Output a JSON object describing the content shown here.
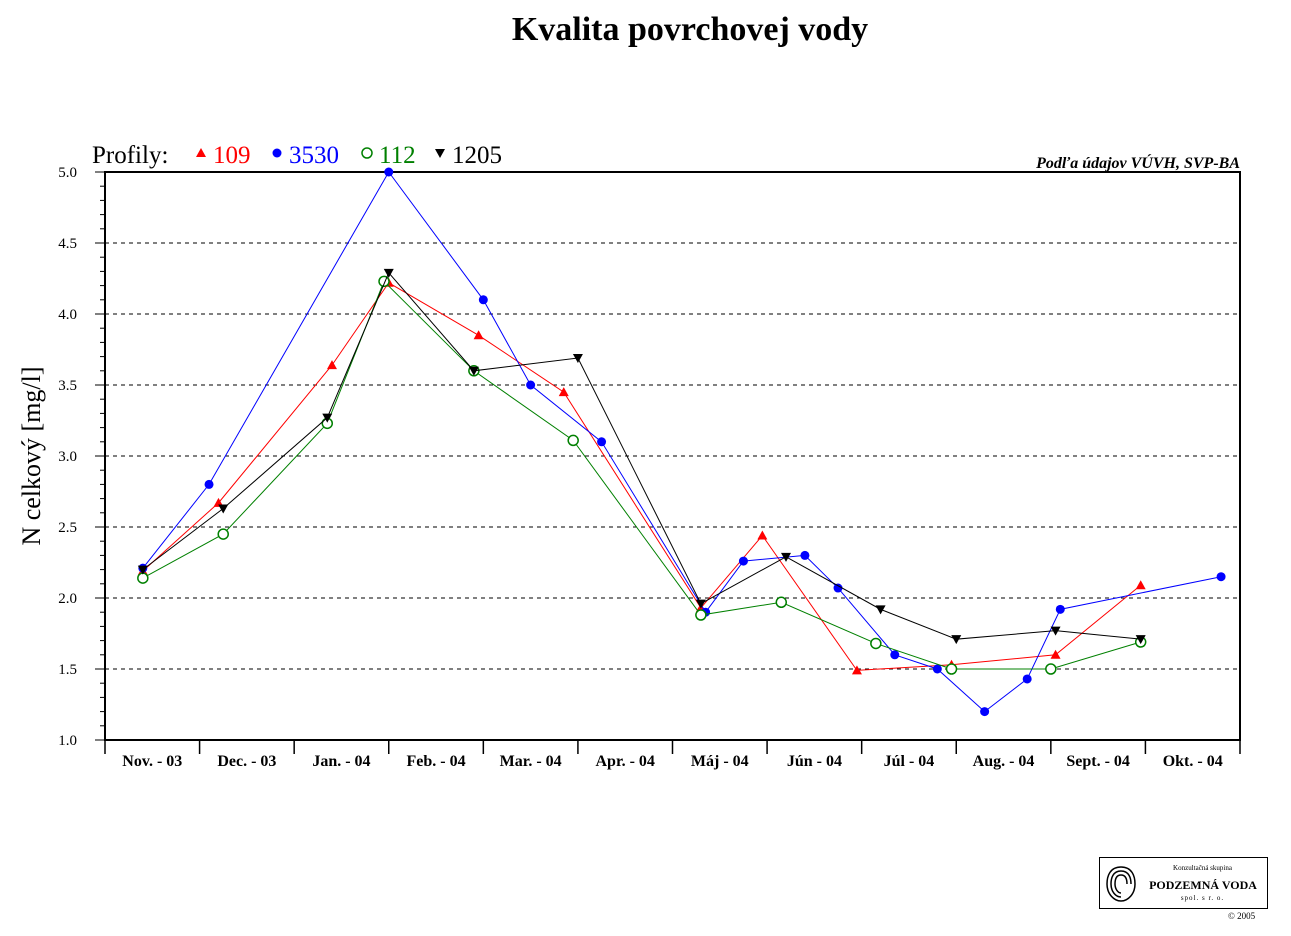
{
  "chart_data": {
    "type": "line",
    "title": "Kvalita povrchovej vody",
    "source_note": "Podľa údajov VÚVH, SVP-BA",
    "legend_prefix": "Profily:",
    "ylabel": "N celkový [mg/l]",
    "xlabel": "",
    "ylim": [
      1.0,
      5.0
    ],
    "yticks": [
      "1.0",
      "1.5",
      "2.0",
      "2.5",
      "3.0",
      "3.5",
      "4.0",
      "4.5",
      "5.0"
    ],
    "grid": "horizontal dashed at 0.5 steps",
    "legend_position": "top-left",
    "categories": [
      "Nov. - 03",
      "Dec. - 03",
      "Jan. - 04",
      "Feb. - 04",
      "Mar. - 04",
      "Apr. - 04",
      "Máj - 04",
      "Jún - 04",
      "Júl - 04",
      "Aug. - 04",
      "Sept. - 04",
      "Okt. - 04"
    ],
    "series": [
      {
        "name": "109",
        "color": "#ff0000",
        "marker": "triangle-up",
        "points": [
          [
            0.4,
            2.19
          ],
          [
            1.2,
            2.67
          ],
          [
            2.4,
            3.64
          ],
          [
            3.0,
            4.22
          ],
          [
            3.95,
            3.85
          ],
          [
            4.85,
            3.45
          ],
          [
            6.3,
            1.93
          ],
          [
            6.95,
            2.44
          ],
          [
            7.95,
            1.49
          ],
          [
            8.95,
            1.53
          ],
          [
            10.05,
            1.6
          ],
          [
            10.95,
            2.09
          ]
        ]
      },
      {
        "name": "3530",
        "color": "#0000ff",
        "marker": "circle-filled",
        "points": [
          [
            0.4,
            2.21
          ],
          [
            1.1,
            2.8
          ],
          [
            3.0,
            5.0
          ],
          [
            4.0,
            4.1
          ],
          [
            4.5,
            3.5
          ],
          [
            5.25,
            3.1
          ],
          [
            6.35,
            1.9
          ],
          [
            6.75,
            2.26
          ],
          [
            7.4,
            2.3
          ],
          [
            7.75,
            2.07
          ],
          [
            8.35,
            1.6
          ],
          [
            8.8,
            1.5
          ],
          [
            9.3,
            1.2
          ],
          [
            9.75,
            1.43
          ],
          [
            10.1,
            1.92
          ],
          [
            11.8,
            2.15
          ]
        ]
      },
      {
        "name": "112",
        "color": "#008000",
        "marker": "circle-open",
        "points": [
          [
            0.4,
            2.14
          ],
          [
            1.25,
            2.45
          ],
          [
            2.35,
            3.23
          ],
          [
            2.95,
            4.23
          ],
          [
            3.9,
            3.6
          ],
          [
            4.95,
            3.11
          ],
          [
            6.3,
            1.88
          ],
          [
            7.15,
            1.97
          ],
          [
            8.15,
            1.68
          ],
          [
            8.95,
            1.5
          ],
          [
            10.0,
            1.5
          ],
          [
            10.95,
            1.69
          ]
        ]
      },
      {
        "name": "1205",
        "color": "#000000",
        "marker": "triangle-down",
        "points": [
          [
            0.4,
            2.2
          ],
          [
            1.25,
            2.63
          ],
          [
            2.35,
            3.27
          ],
          [
            3.0,
            4.29
          ],
          [
            3.9,
            3.6
          ],
          [
            5.0,
            3.69
          ],
          [
            6.3,
            1.96
          ],
          [
            7.2,
            2.29
          ],
          [
            8.2,
            1.92
          ],
          [
            9.0,
            1.71
          ],
          [
            10.05,
            1.77
          ],
          [
            10.95,
            1.71
          ]
        ]
      }
    ]
  },
  "logo": {
    "top_text": "Konzultačná skupina",
    "main_text": "PODZEMNÁ VODA",
    "sub_text": "spol. s r. o.",
    "copyright": "© 2005"
  }
}
